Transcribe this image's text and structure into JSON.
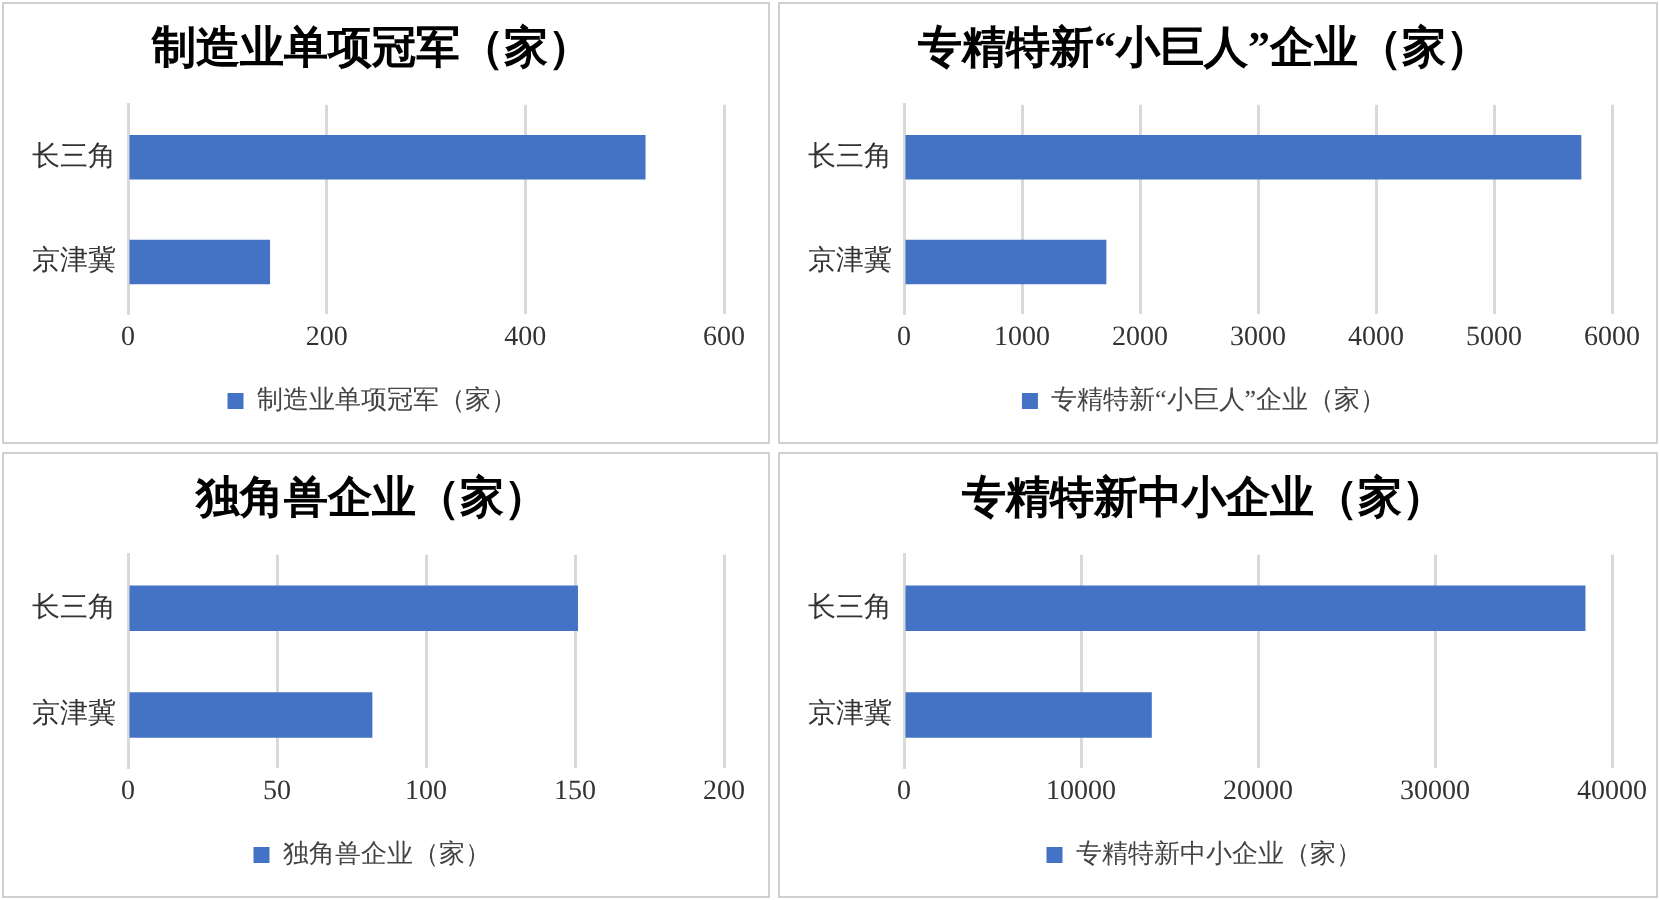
{
  "chart_data": [
    {
      "type": "bar",
      "orientation": "horizontal",
      "title": "制造业单项冠军（家）",
      "categories": [
        "长三角",
        "京津冀"
      ],
      "series": [
        {
          "name": "制造业单项冠军（家）",
          "color": "#4472c4",
          "values": [
            521,
            143
          ]
        }
      ],
      "xlim": [
        0,
        600
      ],
      "xticks": [
        0,
        200,
        400,
        600
      ],
      "grid": "x",
      "legend": "bottom"
    },
    {
      "type": "bar",
      "orientation": "horizontal",
      "title": "专精特新“小巨人”企业（家）",
      "categories": [
        "长三角",
        "京津冀"
      ],
      "series": [
        {
          "name": "专精特新“小巨人”企业（家）",
          "color": "#4472c4",
          "values": [
            5740,
            1715
          ]
        }
      ],
      "xlim": [
        0,
        6000
      ],
      "xticks": [
        0,
        1000,
        2000,
        3000,
        4000,
        5000,
        6000
      ],
      "grid": "x",
      "legend": "bottom"
    },
    {
      "type": "bar",
      "orientation": "horizontal",
      "title": "独角兽企业（家）",
      "categories": [
        "长三角",
        "京津冀"
      ],
      "series": [
        {
          "name": "独角兽企业（家）",
          "color": "#4472c4",
          "values": [
            151,
            82
          ]
        }
      ],
      "xlim": [
        0,
        200
      ],
      "xticks": [
        0,
        50,
        100,
        150,
        200
      ],
      "grid": "x",
      "legend": "bottom"
    },
    {
      "type": "bar",
      "orientation": "horizontal",
      "title": "专精特新中小企业（家）",
      "categories": [
        "长三角",
        "京津冀"
      ],
      "series": [
        {
          "name": "专精特新中小企业（家）",
          "color": "#4472c4",
          "values": [
            38500,
            14000
          ]
        }
      ],
      "xlim": [
        0,
        40000
      ],
      "xticks": [
        0,
        10000,
        20000,
        30000,
        40000
      ],
      "grid": "x",
      "legend": "bottom"
    }
  ]
}
